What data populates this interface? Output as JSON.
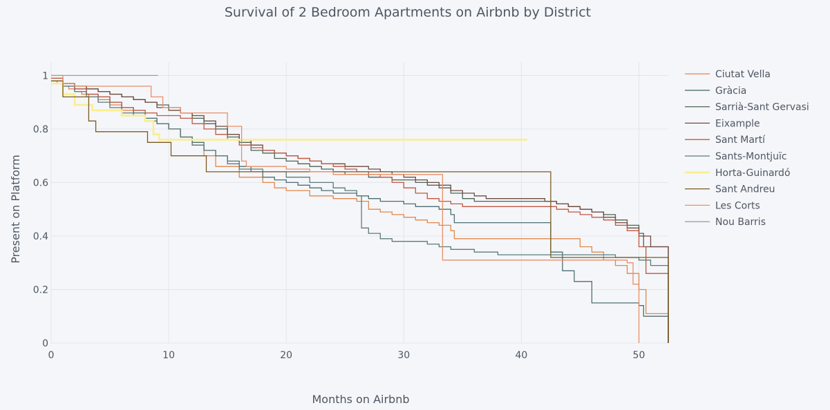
{
  "chart_data": {
    "type": "line",
    "line_shape": "step",
    "title": "Survival of 2 Bedroom Apartments on Airbnb by District",
    "xlabel": "Months on Airbnb",
    "ylabel": "Present on Platform",
    "xlim": [
      0,
      52.5
    ],
    "ylim": [
      0,
      1.05
    ],
    "x_ticks": [
      0,
      10,
      20,
      30,
      40,
      50
    ],
    "y_ticks": [
      0,
      0.2,
      0.4,
      0.6,
      0.8,
      1
    ],
    "x_tick_labels": [
      "0",
      "10",
      "20",
      "30",
      "40",
      "50"
    ],
    "y_tick_labels": [
      "0",
      "0.2",
      "0.4",
      "0.6",
      "0.8",
      "1"
    ],
    "grid": true,
    "legend_position": "right",
    "series": [
      {
        "name": "Ciutat Vella",
        "color": "#E28748",
        "width": 1.3,
        "x": [
          0,
          0.5,
          1,
          1.5,
          2,
          2.6,
          3.2,
          4,
          5,
          6,
          7,
          8,
          9,
          10,
          11,
          12,
          13,
          14,
          16,
          18,
          19,
          20,
          22,
          24,
          25,
          26,
          27,
          28,
          29,
          30,
          31,
          32,
          33,
          34,
          34.3,
          38,
          40,
          42,
          43,
          45,
          46,
          47,
          48,
          49,
          50,
          50.6,
          52.5
        ],
        "y": [
          0.98,
          0.97,
          0.96,
          0.95,
          0.94,
          0.93,
          0.92,
          0.91,
          0.89,
          0.87,
          0.85,
          0.84,
          0.82,
          0.8,
          0.77,
          0.74,
          0.7,
          0.66,
          0.62,
          0.6,
          0.58,
          0.57,
          0.55,
          0.54,
          0.54,
          0.53,
          0.5,
          0.49,
          0.48,
          0.47,
          0.46,
          0.45,
          0.44,
          0.42,
          0.39,
          0.39,
          0.39,
          0.39,
          0.39,
          0.36,
          0.34,
          0.31,
          0.29,
          0.26,
          0.2,
          0.11,
          0.0
        ]
      },
      {
        "name": "Gràcia",
        "color": "#4B6E72",
        "width": 1.3,
        "x": [
          0,
          1,
          2,
          3,
          4,
          5,
          6,
          7,
          8,
          9,
          10,
          11,
          12,
          13,
          14,
          15,
          16,
          17,
          18,
          19,
          20,
          21,
          22,
          23,
          24,
          25,
          26,
          27,
          28,
          29,
          30,
          31,
          33,
          34,
          34.3,
          36,
          38,
          40,
          42,
          42.5,
          43.5,
          44.5,
          46,
          47,
          48,
          49,
          50,
          50.4,
          52.5
        ],
        "y": [
          0.97,
          0.96,
          0.95,
          0.93,
          0.92,
          0.9,
          0.88,
          0.86,
          0.84,
          0.82,
          0.8,
          0.77,
          0.75,
          0.72,
          0.7,
          0.68,
          0.66,
          0.64,
          0.62,
          0.61,
          0.6,
          0.59,
          0.58,
          0.57,
          0.56,
          0.56,
          0.55,
          0.54,
          0.53,
          0.53,
          0.52,
          0.51,
          0.5,
          0.48,
          0.45,
          0.45,
          0.45,
          0.45,
          0.45,
          0.34,
          0.27,
          0.23,
          0.15,
          0.15,
          0.15,
          0.15,
          0.14,
          0.1,
          0.0
        ]
      },
      {
        "name": "Sarrià-Sant Gervasi",
        "color": "#4C6355",
        "width": 1.3,
        "x": [
          0,
          1,
          2,
          3,
          4,
          5,
          6,
          7,
          8,
          9,
          10,
          11,
          12,
          13,
          14,
          15,
          16,
          17,
          18,
          19,
          20,
          21,
          22,
          23,
          24,
          25,
          26,
          27,
          28,
          29,
          30,
          31,
          32,
          33,
          34,
          35,
          36,
          38,
          40,
          42,
          43,
          44,
          45,
          46,
          47,
          48,
          49,
          50,
          50.4,
          52.5
        ],
        "y": [
          0.98,
          0.97,
          0.96,
          0.95,
          0.94,
          0.93,
          0.92,
          0.91,
          0.9,
          0.89,
          0.88,
          0.86,
          0.84,
          0.82,
          0.8,
          0.77,
          0.75,
          0.72,
          0.71,
          0.69,
          0.68,
          0.67,
          0.66,
          0.65,
          0.64,
          0.63,
          0.63,
          0.62,
          0.62,
          0.61,
          0.61,
          0.6,
          0.59,
          0.58,
          0.56,
          0.54,
          0.53,
          0.53,
          0.53,
          0.53,
          0.52,
          0.51,
          0.5,
          0.49,
          0.48,
          0.46,
          0.44,
          0.41,
          0.36,
          0.0
        ]
      },
      {
        "name": "Eixample",
        "color": "#6E4A3E",
        "width": 1.3,
        "x": [
          0,
          1,
          2,
          3,
          4,
          5,
          6,
          7,
          8,
          9,
          10,
          11,
          12,
          13,
          14,
          15,
          16,
          17,
          18,
          19,
          20,
          21,
          22,
          23,
          24,
          25,
          26,
          27,
          28,
          29,
          30,
          31,
          32,
          33,
          34,
          35,
          36,
          37,
          38,
          40,
          42,
          43,
          44,
          45,
          46,
          47,
          48,
          49,
          50,
          51,
          52.5
        ],
        "y": [
          0.98,
          0.97,
          0.96,
          0.95,
          0.94,
          0.93,
          0.92,
          0.91,
          0.9,
          0.88,
          0.87,
          0.86,
          0.85,
          0.83,
          0.81,
          0.78,
          0.76,
          0.74,
          0.72,
          0.71,
          0.7,
          0.69,
          0.68,
          0.67,
          0.67,
          0.66,
          0.66,
          0.65,
          0.64,
          0.63,
          0.62,
          0.61,
          0.6,
          0.59,
          0.57,
          0.56,
          0.55,
          0.54,
          0.54,
          0.54,
          0.53,
          0.52,
          0.51,
          0.5,
          0.49,
          0.47,
          0.45,
          0.43,
          0.4,
          0.36,
          0.0
        ]
      },
      {
        "name": "Sant Martí",
        "color": "#C1573F",
        "width": 1.3,
        "x": [
          0,
          1,
          2,
          3,
          4,
          5,
          6,
          7,
          8,
          9,
          10,
          11,
          12,
          13,
          14,
          15,
          16,
          17,
          18,
          19,
          20,
          21,
          22,
          23,
          24,
          25,
          26,
          27,
          28,
          29,
          30,
          31,
          32,
          33,
          34,
          35,
          36,
          38,
          40,
          42,
          43,
          44,
          45,
          46,
          47,
          48,
          49,
          50,
          50.6,
          52.5
        ],
        "y": [
          0.99,
          0.97,
          0.95,
          0.93,
          0.92,
          0.9,
          0.88,
          0.87,
          0.86,
          0.85,
          0.85,
          0.84,
          0.82,
          0.8,
          0.78,
          0.76,
          0.74,
          0.73,
          0.72,
          0.71,
          0.7,
          0.69,
          0.68,
          0.67,
          0.66,
          0.65,
          0.64,
          0.63,
          0.62,
          0.6,
          0.58,
          0.56,
          0.54,
          0.53,
          0.52,
          0.51,
          0.51,
          0.51,
          0.51,
          0.51,
          0.5,
          0.49,
          0.48,
          0.47,
          0.46,
          0.44,
          0.42,
          0.36,
          0.26,
          0.0
        ]
      },
      {
        "name": "Sants-Montjuïc",
        "color": "#5B7A7B",
        "width": 1.3,
        "x": [
          0,
          1,
          2,
          3,
          4,
          5,
          6,
          7,
          8,
          9,
          10,
          11,
          12,
          13,
          14,
          15,
          16,
          18,
          20,
          22,
          24,
          25,
          26,
          26.4,
          27,
          28,
          29,
          30,
          32,
          33,
          34,
          36,
          38,
          40,
          42,
          43,
          44,
          46,
          48,
          50,
          51,
          52.5
        ],
        "y": [
          0.98,
          0.96,
          0.94,
          0.92,
          0.9,
          0.88,
          0.86,
          0.85,
          0.83,
          0.82,
          0.8,
          0.77,
          0.74,
          0.72,
          0.7,
          0.67,
          0.65,
          0.64,
          0.62,
          0.6,
          0.58,
          0.57,
          0.55,
          0.43,
          0.41,
          0.39,
          0.38,
          0.38,
          0.37,
          0.36,
          0.35,
          0.34,
          0.33,
          0.33,
          0.33,
          0.33,
          0.33,
          0.33,
          0.32,
          0.31,
          0.29,
          0.0
        ]
      },
      {
        "name": "Horta-Guinardó",
        "color": "#FBEE8C",
        "width": 2.6,
        "x": [
          0,
          1,
          2,
          3,
          3.5,
          6,
          8,
          8.7,
          9.2,
          10.5,
          12,
          16,
          20,
          30,
          40.5
        ],
        "y": [
          0.97,
          0.93,
          0.89,
          0.89,
          0.87,
          0.85,
          0.83,
          0.78,
          0.76,
          0.76,
          0.76,
          0.76,
          0.76,
          0.76,
          0.76
        ]
      },
      {
        "name": "Sant Andreu",
        "color": "#7A5A20",
        "width": 1.3,
        "x": [
          0,
          1,
          3.2,
          3.8,
          6,
          8.2,
          10.2,
          13.2,
          20,
          30,
          42.5,
          42.5,
          52.5
        ],
        "y": [
          0.98,
          0.92,
          0.83,
          0.79,
          0.79,
          0.75,
          0.7,
          0.64,
          0.64,
          0.64,
          0.64,
          0.32,
          0.0
        ]
      },
      {
        "name": "Les Corts",
        "color": "#E88F66",
        "width": 1.3,
        "x": [
          0,
          1,
          2,
          5,
          6,
          7,
          8.5,
          9.5,
          11,
          13,
          14,
          15,
          16.2,
          16.6,
          18,
          20,
          22,
          24,
          26,
          28,
          30,
          33,
          33.3,
          36,
          40,
          44,
          48,
          49,
          49.5,
          50
        ],
        "y": [
          1.0,
          0.97,
          0.96,
          0.96,
          0.96,
          0.96,
          0.92,
          0.88,
          0.86,
          0.86,
          0.86,
          0.81,
          0.68,
          0.66,
          0.66,
          0.65,
          0.64,
          0.63,
          0.63,
          0.63,
          0.63,
          0.63,
          0.31,
          0.31,
          0.31,
          0.31,
          0.31,
          0.3,
          0.22,
          0.0
        ]
      },
      {
        "name": "Nou Barris",
        "color": "#8FA5A8",
        "width": 1.3,
        "x": [
          0,
          9.1
        ],
        "y": [
          1.0,
          1.0
        ]
      }
    ]
  }
}
